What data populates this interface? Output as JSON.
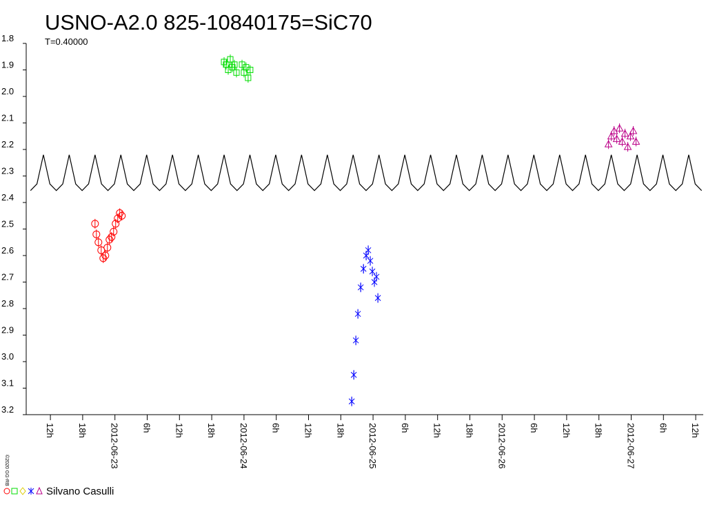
{
  "chart_data": {
    "type": "scatter",
    "title": "USNO-A2.0 825-10840175=SiC70",
    "subtitle": "T=0.40000",
    "legend_label": "Silvano Casulli",
    "copyright": "©2020 GG-RB",
    "y_inverted": true,
    "ylim": [
      1.8,
      3.2
    ],
    "yticks": [
      1.8,
      1.9,
      {
        "value": 2,
        "label": "2.0"
      },
      2.1,
      2.2,
      2.3,
      2.4,
      2.5,
      2.6,
      2.7,
      2.8,
      2.9,
      {
        "value": 3,
        "label": "3.0"
      },
      3.1,
      3.2
    ],
    "xlim": [
      "2012-06-22T07:30",
      "2012-06-27T13:24"
    ],
    "xticks": [
      {
        "value": "2012-06-22T12:00",
        "label": "12h"
      },
      {
        "value": "2012-06-22T18:00",
        "label": "18h"
      },
      {
        "value": "2012-06-23T00:00",
        "label": "2012-06-23"
      },
      {
        "value": "2012-06-23T06:00",
        "label": "6h"
      },
      {
        "value": "2012-06-23T12:00",
        "label": "12h"
      },
      {
        "value": "2012-06-23T18:00",
        "label": "18h"
      },
      {
        "value": "2012-06-24T00:00",
        "label": "2012-06-24"
      },
      {
        "value": "2012-06-24T06:00",
        "label": "6h"
      },
      {
        "value": "2012-06-24T12:00",
        "label": "12h"
      },
      {
        "value": "2012-06-24T18:00",
        "label": "18h"
      },
      {
        "value": "2012-06-25T00:00",
        "label": "2012-06-25"
      },
      {
        "value": "2012-06-25T06:00",
        "label": "6h"
      },
      {
        "value": "2012-06-25T12:00",
        "label": "12h"
      },
      {
        "value": "2012-06-25T18:00",
        "label": "18h"
      },
      {
        "value": "2012-06-26T00:00",
        "label": "2012-06-26"
      },
      {
        "value": "2012-06-26T06:00",
        "label": "6h"
      },
      {
        "value": "2012-06-26T12:00",
        "label": "12h"
      },
      {
        "value": "2012-06-26T18:00",
        "label": "18h"
      },
      {
        "value": "2012-06-27T00:00",
        "label": "2012-06-27"
      },
      {
        "value": "2012-06-27T06:00",
        "label": "6h"
      },
      {
        "value": "2012-06-27T12:00",
        "label": "12h"
      }
    ],
    "series": [
      {
        "color": "#ff0000",
        "marker": "circle",
        "x": [
          "2012-06-22T20:18",
          "2012-06-22T20:33",
          "2012-06-22T20:56",
          "2012-06-22T21:27",
          "2012-06-22T21:50",
          "2012-06-22T22:13",
          "2012-06-22T22:36",
          "2012-06-22T22:59",
          "2012-06-22T23:22",
          "2012-06-22T23:45",
          "2012-06-23T00:08",
          "2012-06-23T00:31",
          "2012-06-23T00:54",
          "2012-06-23T01:17"
        ],
        "values": [
          2.48,
          2.52,
          2.55,
          2.58,
          2.61,
          2.6,
          2.57,
          2.54,
          2.53,
          2.51,
          2.48,
          2.46,
          2.44,
          2.45
        ]
      },
      {
        "color": "#00dd00",
        "marker": "square",
        "x": [
          "2012-06-23T20:18",
          "2012-06-23T20:41",
          "2012-06-23T21:04",
          "2012-06-23T21:27",
          "2012-06-23T21:50",
          "2012-06-23T22:13",
          "2012-06-23T22:36",
          "2012-06-23T23:38",
          "2012-06-24T00:00",
          "2012-06-24T00:23",
          "2012-06-24T00:46",
          "2012-06-24T01:09"
        ],
        "values": [
          1.87,
          1.88,
          1.9,
          1.86,
          1.89,
          1.88,
          1.91,
          1.88,
          1.91,
          1.89,
          1.93,
          1.9
        ]
      },
      {
        "color": "#0000ff",
        "marker": "star",
        "x": [
          "2012-06-24T20:02",
          "2012-06-24T20:25",
          "2012-06-24T20:48",
          "2012-06-24T21:11",
          "2012-06-24T21:42",
          "2012-06-24T22:13",
          "2012-06-24T22:43",
          "2012-06-24T23:06",
          "2012-06-24T23:29",
          "2012-06-24T23:52",
          "2012-06-25T00:15",
          "2012-06-25T00:38",
          "2012-06-25T00:54"
        ],
        "values": [
          3.15,
          3.05,
          2.92,
          2.82,
          2.72,
          2.65,
          2.6,
          2.58,
          2.62,
          2.66,
          2.7,
          2.68,
          2.76
        ]
      },
      {
        "color": "#bb0088",
        "marker": "triangle",
        "x": [
          "2012-06-26T19:47",
          "2012-06-26T20:18",
          "2012-06-26T20:49",
          "2012-06-26T21:19",
          "2012-06-26T21:50",
          "2012-06-26T22:20",
          "2012-06-26T22:51",
          "2012-06-26T23:22",
          "2012-06-26T23:52",
          "2012-06-27T00:23",
          "2012-06-27T00:54"
        ],
        "values": [
          2.18,
          2.15,
          2.13,
          2.16,
          2.12,
          2.17,
          2.14,
          2.19,
          2.15,
          2.13,
          2.17
        ]
      },
      {
        "color": "#000000",
        "marker": "line",
        "x": [
          "2012-06-22T08:18",
          "2012-06-22T09:30",
          "2012-06-22T10:42",
          "2012-06-22T11:54",
          "2012-06-22T13:06",
          "2012-06-22T14:18",
          "2012-06-22T15:30",
          "2012-06-22T16:42",
          "2012-06-22T17:54",
          "2012-06-22T19:06",
          "2012-06-22T20:18",
          "2012-06-22T21:30",
          "2012-06-22T22:42",
          "2012-06-22T23:54",
          "2012-06-23T01:06",
          "2012-06-23T02:18",
          "2012-06-23T03:30",
          "2012-06-23T04:42",
          "2012-06-23T05:54",
          "2012-06-23T07:06",
          "2012-06-23T08:18",
          "2012-06-23T09:30",
          "2012-06-23T10:42",
          "2012-06-23T11:54",
          "2012-06-23T13:06",
          "2012-06-23T14:18",
          "2012-06-23T15:30",
          "2012-06-23T16:42",
          "2012-06-23T17:54",
          "2012-06-23T19:06",
          "2012-06-23T20:18",
          "2012-06-23T21:30",
          "2012-06-23T22:42",
          "2012-06-23T23:54",
          "2012-06-24T01:06",
          "2012-06-24T02:18",
          "2012-06-24T03:30",
          "2012-06-24T04:42",
          "2012-06-24T05:54",
          "2012-06-24T07:06",
          "2012-06-24T08:18",
          "2012-06-24T09:30",
          "2012-06-24T10:42",
          "2012-06-24T11:54",
          "2012-06-24T13:06",
          "2012-06-24T14:18",
          "2012-06-24T15:30",
          "2012-06-24T16:42",
          "2012-06-24T17:54",
          "2012-06-24T19:06",
          "2012-06-24T20:18",
          "2012-06-24T21:30",
          "2012-06-24T22:42",
          "2012-06-24T23:54",
          "2012-06-25T01:06",
          "2012-06-25T02:18",
          "2012-06-25T03:30",
          "2012-06-25T04:42",
          "2012-06-25T05:54",
          "2012-06-25T07:06",
          "2012-06-25T08:18",
          "2012-06-25T09:30",
          "2012-06-25T10:42",
          "2012-06-25T11:54",
          "2012-06-25T13:06",
          "2012-06-25T14:18",
          "2012-06-25T15:30",
          "2012-06-25T16:42",
          "2012-06-25T17:54",
          "2012-06-25T19:06",
          "2012-06-25T20:18",
          "2012-06-25T21:30",
          "2012-06-25T22:42",
          "2012-06-25T23:54",
          "2012-06-26T01:06",
          "2012-06-26T02:18",
          "2012-06-26T03:30",
          "2012-06-26T04:42",
          "2012-06-26T05:54",
          "2012-06-26T07:06",
          "2012-06-26T08:18",
          "2012-06-26T09:30",
          "2012-06-26T10:42",
          "2012-06-26T11:54",
          "2012-06-26T13:06",
          "2012-06-26T14:18",
          "2012-06-26T15:30",
          "2012-06-26T16:42",
          "2012-06-26T17:54",
          "2012-06-26T19:06",
          "2012-06-26T20:18",
          "2012-06-26T21:30",
          "2012-06-26T22:42",
          "2012-06-26T23:54",
          "2012-06-27T01:06",
          "2012-06-27T02:18",
          "2012-06-27T03:30",
          "2012-06-27T04:42",
          "2012-06-27T05:54",
          "2012-06-27T07:06",
          "2012-06-27T08:18",
          "2012-06-27T09:30",
          "2012-06-27T10:42",
          "2012-06-27T11:54",
          "2012-06-27T13:06"
        ],
        "values": [
          2.355,
          2.33,
          2.22,
          2.33,
          2.355,
          2.33,
          2.22,
          2.33,
          2.355,
          2.33,
          2.22,
          2.33,
          2.355,
          2.33,
          2.22,
          2.33,
          2.355,
          2.33,
          2.22,
          2.33,
          2.355,
          2.33,
          2.22,
          2.33,
          2.355,
          2.33,
          2.22,
          2.33,
          2.355,
          2.33,
          2.22,
          2.33,
          2.355,
          2.33,
          2.22,
          2.33,
          2.355,
          2.33,
          2.22,
          2.33,
          2.355,
          2.33,
          2.22,
          2.33,
          2.355,
          2.33,
          2.22,
          2.33,
          2.355,
          2.33,
          2.22,
          2.33,
          2.355,
          2.33,
          2.22,
          2.33,
          2.355,
          2.33,
          2.22,
          2.33,
          2.355,
          2.33,
          2.22,
          2.33,
          2.355,
          2.33,
          2.22,
          2.33,
          2.355,
          2.33,
          2.22,
          2.33,
          2.355,
          2.33,
          2.22,
          2.33,
          2.355,
          2.33,
          2.22,
          2.33,
          2.355,
          2.33,
          2.22,
          2.33,
          2.355,
          2.33,
          2.22,
          2.33,
          2.355,
          2.33,
          2.22,
          2.33,
          2.355,
          2.33,
          2.22,
          2.33,
          2.355,
          2.33,
          2.22,
          2.33,
          2.355,
          2.33,
          2.22,
          2.33,
          2.355
        ]
      }
    ]
  }
}
